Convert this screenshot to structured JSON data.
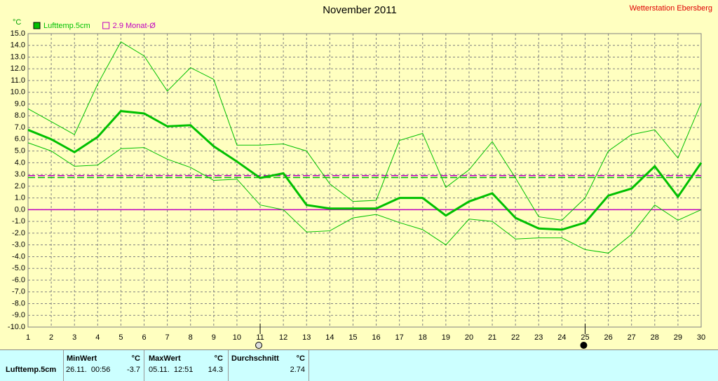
{
  "chart_data": {
    "type": "line",
    "title": "November 2011",
    "subtitle": "Wetterstation Ebersberg",
    "y_unit": "°C",
    "x": [
      1,
      2,
      3,
      4,
      5,
      6,
      7,
      8,
      9,
      10,
      11,
      12,
      13,
      14,
      15,
      16,
      17,
      18,
      19,
      20,
      21,
      22,
      23,
      24,
      25,
      26,
      27,
      28,
      29,
      30
    ],
    "xlim": [
      1,
      30
    ],
    "xticks": [
      1,
      2,
      3,
      4,
      5,
      6,
      7,
      8,
      9,
      10,
      11,
      12,
      13,
      14,
      15,
      16,
      17,
      18,
      19,
      20,
      21,
      22,
      23,
      24,
      25,
      26,
      27,
      28,
      29,
      30
    ],
    "ylim": [
      -10,
      15
    ],
    "yticks": [
      {
        "value": -10,
        "label": "-10.0"
      },
      {
        "value": -9,
        "label": "-9.0"
      },
      {
        "value": -8,
        "label": "-8.0"
      },
      {
        "value": -7,
        "label": "-7.0"
      },
      {
        "value": -6,
        "label": "-6.0"
      },
      {
        "value": -5,
        "label": "-5.0"
      },
      {
        "value": -4,
        "label": "-4.0"
      },
      {
        "value": -3,
        "label": "-3.0"
      },
      {
        "value": -2,
        "label": "-2.0"
      },
      {
        "value": -1,
        "label": "-1.0"
      },
      {
        "value": 0,
        "label": "0.0"
      },
      {
        "value": 1,
        "label": "1.0"
      },
      {
        "value": 2,
        "label": "2.0"
      },
      {
        "value": 3,
        "label": "3.0"
      },
      {
        "value": 4,
        "label": "4.0"
      },
      {
        "value": 5,
        "label": "5.0"
      },
      {
        "value": 6,
        "label": "6.0"
      },
      {
        "value": 7,
        "label": "7.0"
      },
      {
        "value": 8,
        "label": "8.0"
      },
      {
        "value": 9,
        "label": "9.0"
      },
      {
        "value": 10,
        "label": "10.0"
      },
      {
        "value": 11,
        "label": "11.0"
      },
      {
        "value": 12,
        "label": "12.0"
      },
      {
        "value": 13,
        "label": "13.0"
      },
      {
        "value": 14,
        "label": "14.0"
      },
      {
        "value": 15,
        "label": "15.0"
      }
    ],
    "grid": true,
    "series": [
      {
        "name": "Lufttemp.5cm",
        "color": "#00c000",
        "line_width": 3,
        "values": [
          6.8,
          6.0,
          4.9,
          6.2,
          8.4,
          8.2,
          7.1,
          7.2,
          5.4,
          4.1,
          2.7,
          3.1,
          0.4,
          0.1,
          0.1,
          0.1,
          1.0,
          1.0,
          -0.5,
          0.7,
          1.4,
          -0.7,
          -1.6,
          -1.7,
          -1.1,
          1.2,
          1.8,
          3.7,
          1.1,
          4.0
        ]
      },
      {
        "color": "#00c000",
        "line_width": 1,
        "values": [
          8.6,
          7.5,
          6.4,
          10.7,
          14.3,
          13.1,
          10.1,
          12.1,
          11.1,
          5.5,
          5.5,
          5.6,
          5.0,
          2.2,
          0.7,
          0.8,
          5.9,
          6.5,
          1.9,
          3.4,
          5.8,
          2.7,
          -0.6,
          -0.9,
          1.0,
          5.0,
          6.4,
          6.8,
          4.4,
          9.1
        ]
      },
      {
        "color": "#00c000",
        "line_width": 1,
        "values": [
          5.7,
          5.0,
          3.7,
          3.8,
          5.2,
          5.3,
          4.3,
          3.6,
          2.5,
          2.6,
          0.4,
          0.0,
          -1.9,
          -1.8,
          -0.7,
          -0.4,
          -1.1,
          -1.7,
          -3.0,
          -0.8,
          -1.0,
          -2.5,
          -2.4,
          -2.4,
          -3.4,
          -3.7,
          -2.1,
          0.4,
          -0.9,
          0.0
        ]
      }
    ],
    "reference_lines": [
      {
        "name": "2.9 Monat-Ø",
        "value": 2.9,
        "color": "#c000c0",
        "dashed": true
      },
      {
        "value": 2.74,
        "color": "#00c000",
        "dashed": true
      },
      {
        "value": 0,
        "color": "#c000c0",
        "dashed": false
      }
    ],
    "moon_markers": [
      {
        "x": 11,
        "filled": false
      },
      {
        "x": 25,
        "filled": true
      }
    ]
  },
  "table": {
    "headers": [
      "MinWert",
      "°C",
      "MaxWert",
      "°C",
      "Durchschnitt",
      "°C"
    ],
    "rows": [
      [
        "Lufttemp.5cm",
        "26.11.  00:56",
        "-3.7",
        "05.11.  12:51",
        "14.3",
        "2.74"
      ]
    ]
  }
}
